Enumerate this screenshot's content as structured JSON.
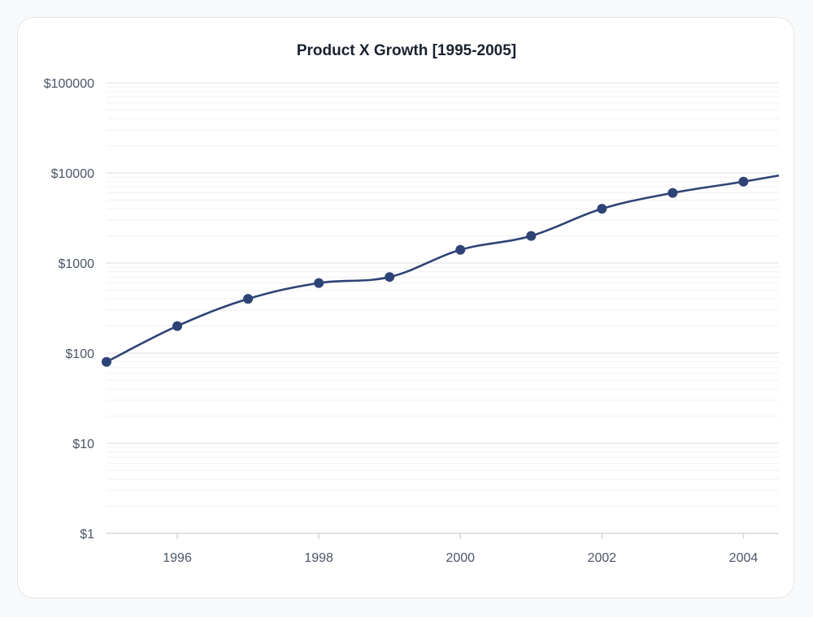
{
  "chart_data": {
    "type": "line",
    "title": "Product X Growth [1995-2005]",
    "xlabel": "",
    "ylabel": "",
    "y_scale": "log",
    "y_prefix": "$",
    "xlim": [
      1995,
      2004.5
    ],
    "ylim": [
      1,
      100000
    ],
    "x_ticks": [
      1996,
      1998,
      2000,
      2002,
      2004
    ],
    "y_ticks": [
      1,
      10,
      100,
      1000,
      10000,
      100000
    ],
    "grid": true,
    "legend": "none",
    "series": [
      {
        "x": [
          1995,
          1996,
          1997,
          1998,
          1999,
          2000,
          2001,
          2002,
          2003,
          2004,
          2005
        ],
        "values": [
          80,
          200,
          400,
          600,
          700,
          1400,
          2000,
          4000,
          6000,
          8000,
          11000
        ],
        "color": "#2e4375"
      }
    ]
  }
}
